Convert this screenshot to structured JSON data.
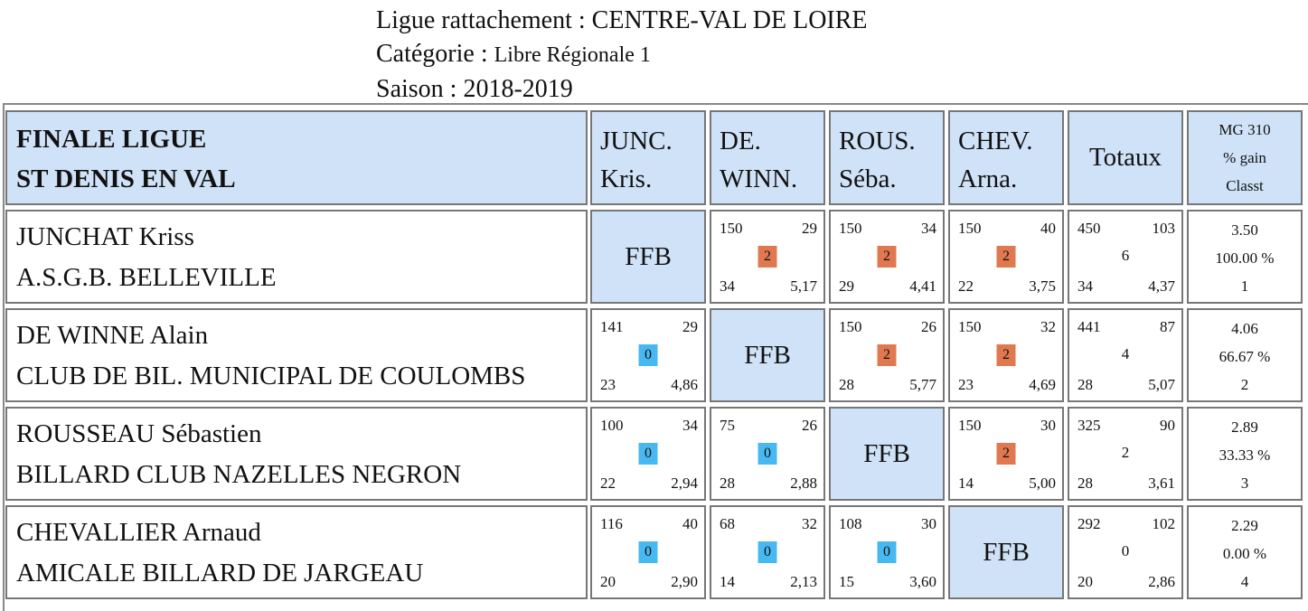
{
  "header": {
    "ligue": "Ligue rattachement : CENTRE-VAL DE LOIRE",
    "categorie_label": "Catégorie : ",
    "categorie_value": "Libre Régionale 1",
    "saison": "Saison : 2018-2019"
  },
  "table": {
    "title_line1": "FINALE LIGUE",
    "title_line2": "ST DENIS EN VAL",
    "columns": [
      {
        "line1": "JUNC.",
        "line2": "Kris."
      },
      {
        "line1": "DE.",
        "line2": "WINN."
      },
      {
        "line1": "ROUS.",
        "line2": "Séba."
      },
      {
        "line1": "CHEV.",
        "line2": "Arna."
      }
    ],
    "totaux_label": "Totaux",
    "mg_line1": "MG 310",
    "mg_line2": "% gain",
    "mg_line3": "Classt",
    "ffb": "FFB",
    "colors": {
      "header_bg": "#d0e2f8",
      "win_badge": "#e07850",
      "loss_badge": "#48b8f0"
    },
    "rows": [
      {
        "name": "JUNCHAT Kriss",
        "club": "A.S.G.B. BELLEVILLE",
        "matches": [
          null,
          {
            "points": "150",
            "reprises": "29",
            "badge": "2",
            "serie": "34",
            "moyenne": "5,17"
          },
          {
            "points": "150",
            "reprises": "34",
            "badge": "2",
            "serie": "29",
            "moyenne": "4,41"
          },
          {
            "points": "150",
            "reprises": "40",
            "badge": "2",
            "serie": "22",
            "moyenne": "3,75"
          }
        ],
        "totals": {
          "points": "450",
          "reprises": "103",
          "pts": "6",
          "serie": "34",
          "moyenne": "4,37"
        },
        "mg": {
          "mg": "3.50",
          "gain": "100.00 %",
          "classt": "1"
        }
      },
      {
        "name": "DE WINNE Alain",
        "club": "CLUB DE BIL. MUNICIPAL DE COULOMBS",
        "matches": [
          {
            "points": "141",
            "reprises": "29",
            "badge": "0",
            "serie": "23",
            "moyenne": "4,86"
          },
          null,
          {
            "points": "150",
            "reprises": "26",
            "badge": "2",
            "serie": "28",
            "moyenne": "5,77"
          },
          {
            "points": "150",
            "reprises": "32",
            "badge": "2",
            "serie": "23",
            "moyenne": "4,69"
          }
        ],
        "totals": {
          "points": "441",
          "reprises": "87",
          "pts": "4",
          "serie": "28",
          "moyenne": "5,07"
        },
        "mg": {
          "mg": "4.06",
          "gain": "66.67 %",
          "classt": "2"
        }
      },
      {
        "name": "ROUSSEAU Sébastien",
        "club": "BILLARD CLUB NAZELLES NEGRON",
        "matches": [
          {
            "points": "100",
            "reprises": "34",
            "badge": "0",
            "serie": "22",
            "moyenne": "2,94"
          },
          {
            "points": "75",
            "reprises": "26",
            "badge": "0",
            "serie": "28",
            "moyenne": "2,88"
          },
          null,
          {
            "points": "150",
            "reprises": "30",
            "badge": "2",
            "serie": "14",
            "moyenne": "5,00"
          }
        ],
        "totals": {
          "points": "325",
          "reprises": "90",
          "pts": "2",
          "serie": "28",
          "moyenne": "3,61"
        },
        "mg": {
          "mg": "2.89",
          "gain": "33.33 %",
          "classt": "3"
        }
      },
      {
        "name": "CHEVALLIER Arnaud",
        "club": "AMICALE BILLARD DE JARGEAU",
        "matches": [
          {
            "points": "116",
            "reprises": "40",
            "badge": "0",
            "serie": "20",
            "moyenne": "2,90"
          },
          {
            "points": "68",
            "reprises": "32",
            "badge": "0",
            "serie": "14",
            "moyenne": "2,13"
          },
          {
            "points": "108",
            "reprises": "30",
            "badge": "0",
            "serie": "15",
            "moyenne": "3,60"
          },
          null
        ],
        "totals": {
          "points": "292",
          "reprises": "102",
          "pts": "0",
          "serie": "20",
          "moyenne": "2,86"
        },
        "mg": {
          "mg": "2.29",
          "gain": "0.00 %",
          "classt": "4"
        }
      }
    ]
  }
}
